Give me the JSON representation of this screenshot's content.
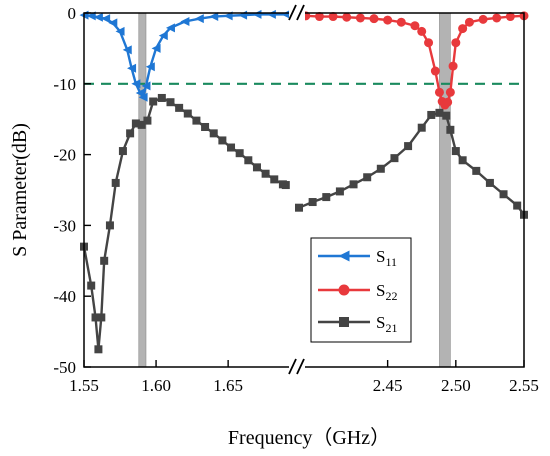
{
  "chart_data": {
    "type": "line",
    "ylabel": "S Parameter(dB)",
    "xlabel": "Frequency（GHz）",
    "ylim": [
      -50,
      0
    ],
    "yticks": [
      0,
      -10,
      -20,
      -30,
      -40,
      -50
    ],
    "ytick_labels": [
      "0",
      "-10",
      "-20",
      "-30",
      "-40",
      "-50"
    ],
    "x_axis_break": true,
    "x_segments": [
      {
        "xlim": [
          1.55,
          1.695
        ],
        "ticks": [
          1.55,
          1.6,
          1.65
        ],
        "tick_labels": [
          "1.55",
          "1.60",
          "1.65"
        ]
      },
      {
        "xlim": [
          2.385,
          2.55
        ],
        "ticks": [
          2.45,
          2.5,
          2.55
        ],
        "tick_labels": [
          "2.45",
          "2.50",
          "2.55"
        ]
      }
    ],
    "reference_line": {
      "y": -10,
      "style": "dashed",
      "color": "#1a8a5e"
    },
    "shaded_bands": [
      {
        "x0": 1.588,
        "x1": 1.593,
        "color": "#b3b3b3"
      },
      {
        "x0": 2.488,
        "x1": 2.496,
        "color": "#b3b3b3"
      }
    ],
    "legend_position": "lower-right",
    "series": [
      {
        "name": "S",
        "subscript": "11",
        "color": "#1f77d4",
        "marker": "triangle-left",
        "x": [
          1.55,
          1.555,
          1.56,
          1.565,
          1.57,
          1.575,
          1.58,
          1.583,
          1.586,
          1.589,
          1.591,
          1.593,
          1.596,
          1.6,
          1.605,
          1.61,
          1.62,
          1.63,
          1.64,
          1.65,
          1.66,
          1.67,
          1.68,
          1.69,
          1.695
        ],
        "y": [
          -0.3,
          -0.4,
          -0.6,
          -0.8,
          -1.4,
          -2.6,
          -5.2,
          -7.8,
          -10.0,
          -11.3,
          -11.9,
          -10.3,
          -7.6,
          -5.0,
          -3.2,
          -2.1,
          -1.2,
          -0.8,
          -0.5,
          -0.4,
          -0.3,
          -0.2,
          -0.2,
          -0.2,
          -0.2
        ]
      },
      {
        "name": "S",
        "subscript": "22",
        "color": "#e8393c",
        "marker": "circle",
        "x": [
          2.385,
          2.39,
          2.4,
          2.41,
          2.42,
          2.43,
          2.44,
          2.45,
          2.46,
          2.47,
          2.475,
          2.48,
          2.485,
          2.488,
          2.49,
          2.492,
          2.494,
          2.496,
          2.498,
          2.5,
          2.505,
          2.51,
          2.52,
          2.53,
          2.54,
          2.55
        ],
        "y": [
          -0.3,
          -0.4,
          -0.5,
          -0.5,
          -0.6,
          -0.7,
          -0.8,
          -1.0,
          -1.3,
          -1.8,
          -2.6,
          -4.2,
          -8.2,
          -11.2,
          -12.5,
          -13.0,
          -12.6,
          -11.2,
          -7.5,
          -4.2,
          -2.2,
          -1.3,
          -0.9,
          -0.7,
          -0.5,
          -0.4
        ]
      },
      {
        "name": "S",
        "subscript": "21",
        "color": "#444444",
        "marker": "square",
        "x": [
          1.55,
          1.555,
          1.558,
          1.56,
          1.562,
          1.564,
          1.568,
          1.572,
          1.577,
          1.582,
          1.586,
          1.59,
          1.594,
          1.598,
          1.604,
          1.61,
          1.616,
          1.622,
          1.628,
          1.634,
          1.64,
          1.646,
          1.652,
          1.658,
          1.664,
          1.67,
          1.676,
          1.682,
          1.688,
          1.69
        ],
        "y": [
          -33.0,
          -38.5,
          -43.0,
          -47.5,
          -43.0,
          -35.0,
          -30.0,
          -24.0,
          -19.5,
          -17.0,
          -15.6,
          -15.8,
          -15.2,
          -12.5,
          -12.0,
          -12.6,
          -13.4,
          -14.2,
          -15.2,
          -16.1,
          -17.0,
          -18.0,
          -19.0,
          -19.8,
          -20.8,
          -21.8,
          -22.7,
          -23.5,
          -24.2,
          -24.3
        ],
        "x2": [
          2.385,
          2.395,
          2.405,
          2.415,
          2.425,
          2.435,
          2.445,
          2.455,
          2.465,
          2.475,
          2.482,
          2.488,
          2.493,
          2.496,
          2.5,
          2.505,
          2.515,
          2.525,
          2.535,
          2.545,
          2.55
        ],
        "y2": [
          -27.5,
          -26.7,
          -26.0,
          -25.2,
          -24.2,
          -23.2,
          -22.0,
          -20.5,
          -18.8,
          -16.2,
          -14.4,
          -14.1,
          -14.5,
          -16.5,
          -19.5,
          -20.8,
          -22.3,
          -24.0,
          -25.6,
          -27.2,
          -28.5
        ]
      }
    ]
  }
}
